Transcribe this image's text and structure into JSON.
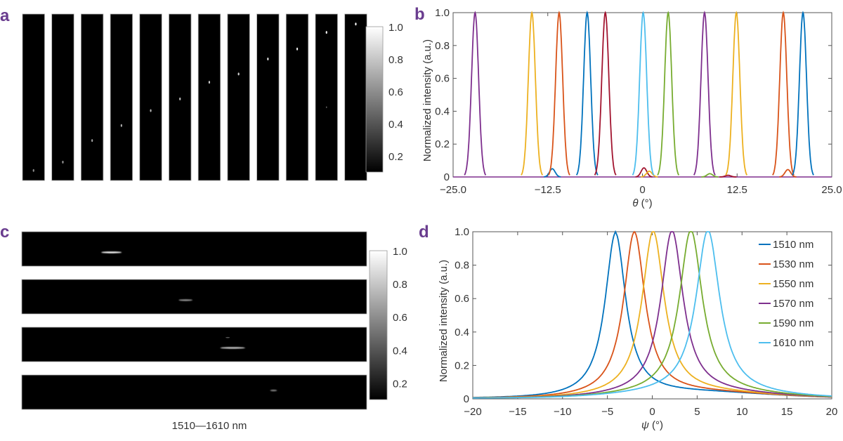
{
  "panels": {
    "a": "a",
    "b": "b",
    "c": "c",
    "d": "d"
  },
  "chart_data": [
    {
      "panel": "a",
      "type": "heatmap",
      "strip_count": 12,
      "orientation": "vertical",
      "spot_positions_from_top": [
        0.94,
        0.89,
        0.76,
        0.67,
        0.58,
        0.51,
        0.41,
        0.36,
        0.27,
        0.21,
        0.11,
        0.06
      ],
      "colorbar": {
        "ticks": [
          "0.2",
          "0.4",
          "0.6",
          "0.8",
          "1.0"
        ],
        "range": [
          0.1,
          1.0
        ],
        "colormap": "gray"
      }
    },
    {
      "panel": "b",
      "type": "line",
      "xlabel_symbol": "θ",
      "xlabel_unit": " (°)",
      "ylabel": "Normalized intensity (a.u.)",
      "xlim": [
        -25,
        25
      ],
      "ylim": [
        0,
        1
      ],
      "xticks": [
        "−25.0",
        "−12.5",
        "0",
        "12.5",
        "25.0"
      ],
      "yticks": [
        "0",
        "0.2",
        "0.4",
        "0.6",
        "0.8",
        "1.0"
      ],
      "peak_fwhm_deg": 1.1,
      "peaks": [
        {
          "center": -22.1,
          "color": "#7E2F8E"
        },
        {
          "center": -14.6,
          "color": "#EDB120"
        },
        {
          "center": -11.0,
          "color": "#D95319"
        },
        {
          "center": -7.3,
          "color": "#0072BD"
        },
        {
          "center": -4.9,
          "color": "#A2142F"
        },
        {
          "center": 0.1,
          "color": "#4DBEEE"
        },
        {
          "center": 3.4,
          "color": "#77AC30"
        },
        {
          "center": 8.2,
          "color": "#7E2F8E"
        },
        {
          "center": 12.4,
          "color": "#EDB120"
        },
        {
          "center": 18.6,
          "color": "#D95319"
        },
        {
          "center": 21.2,
          "color": "#0072BD"
        }
      ],
      "side_lobes": [
        {
          "center": -11.9,
          "height": 0.05,
          "color": "#0072BD"
        },
        {
          "center": 0.2,
          "height": 0.055,
          "color": "#A2142F"
        },
        {
          "center": 0.9,
          "height": 0.035,
          "color": "#EDB120"
        },
        {
          "center": 8.9,
          "height": 0.02,
          "color": "#77AC30"
        },
        {
          "center": 11.3,
          "height": 0.01,
          "color": "#A2142F"
        },
        {
          "center": 19.2,
          "height": 0.045,
          "color": "#D95319"
        }
      ]
    },
    {
      "panel": "c",
      "type": "heatmap",
      "strip_count": 4,
      "orientation": "horizontal",
      "caption": "1510—1610 nm",
      "colorbar": {
        "ticks": [
          "0.2",
          "0.4",
          "0.6",
          "0.8",
          "1.0"
        ],
        "range": [
          0.1,
          1.0
        ],
        "colormap": "gray"
      }
    },
    {
      "panel": "d",
      "type": "line",
      "xlabel_symbol": "ψ",
      "xlabel_unit": " (°)",
      "ylabel": "Normalized intensity (a.u.)",
      "xlim": [
        -20,
        20
      ],
      "ylim": [
        0,
        1
      ],
      "xticks": [
        "−20",
        "−15",
        "−10",
        "−5",
        "0",
        "5",
        "10",
        "15",
        "20"
      ],
      "yticks": [
        "0",
        "0.2",
        "0.4",
        "0.6",
        "0.8",
        "1.0"
      ],
      "legend_position": "top-right",
      "series": [
        {
          "name": "1510 nm",
          "center": -4.1,
          "fwhm": 2.8,
          "color": "#0072BD"
        },
        {
          "name": "1530 nm",
          "center": -2.0,
          "fwhm": 2.9,
          "color": "#D95319"
        },
        {
          "name": "1550 nm",
          "center": 0.1,
          "fwhm": 3.0,
          "color": "#EDB120"
        },
        {
          "name": "1570 nm",
          "center": 2.2,
          "fwhm": 3.0,
          "color": "#7E2F8E"
        },
        {
          "name": "1590 nm",
          "center": 4.3,
          "fwhm": 3.1,
          "color": "#77AC30"
        },
        {
          "name": "1610 nm",
          "center": 6.2,
          "fwhm": 3.2,
          "color": "#4DBEEE"
        }
      ]
    }
  ]
}
